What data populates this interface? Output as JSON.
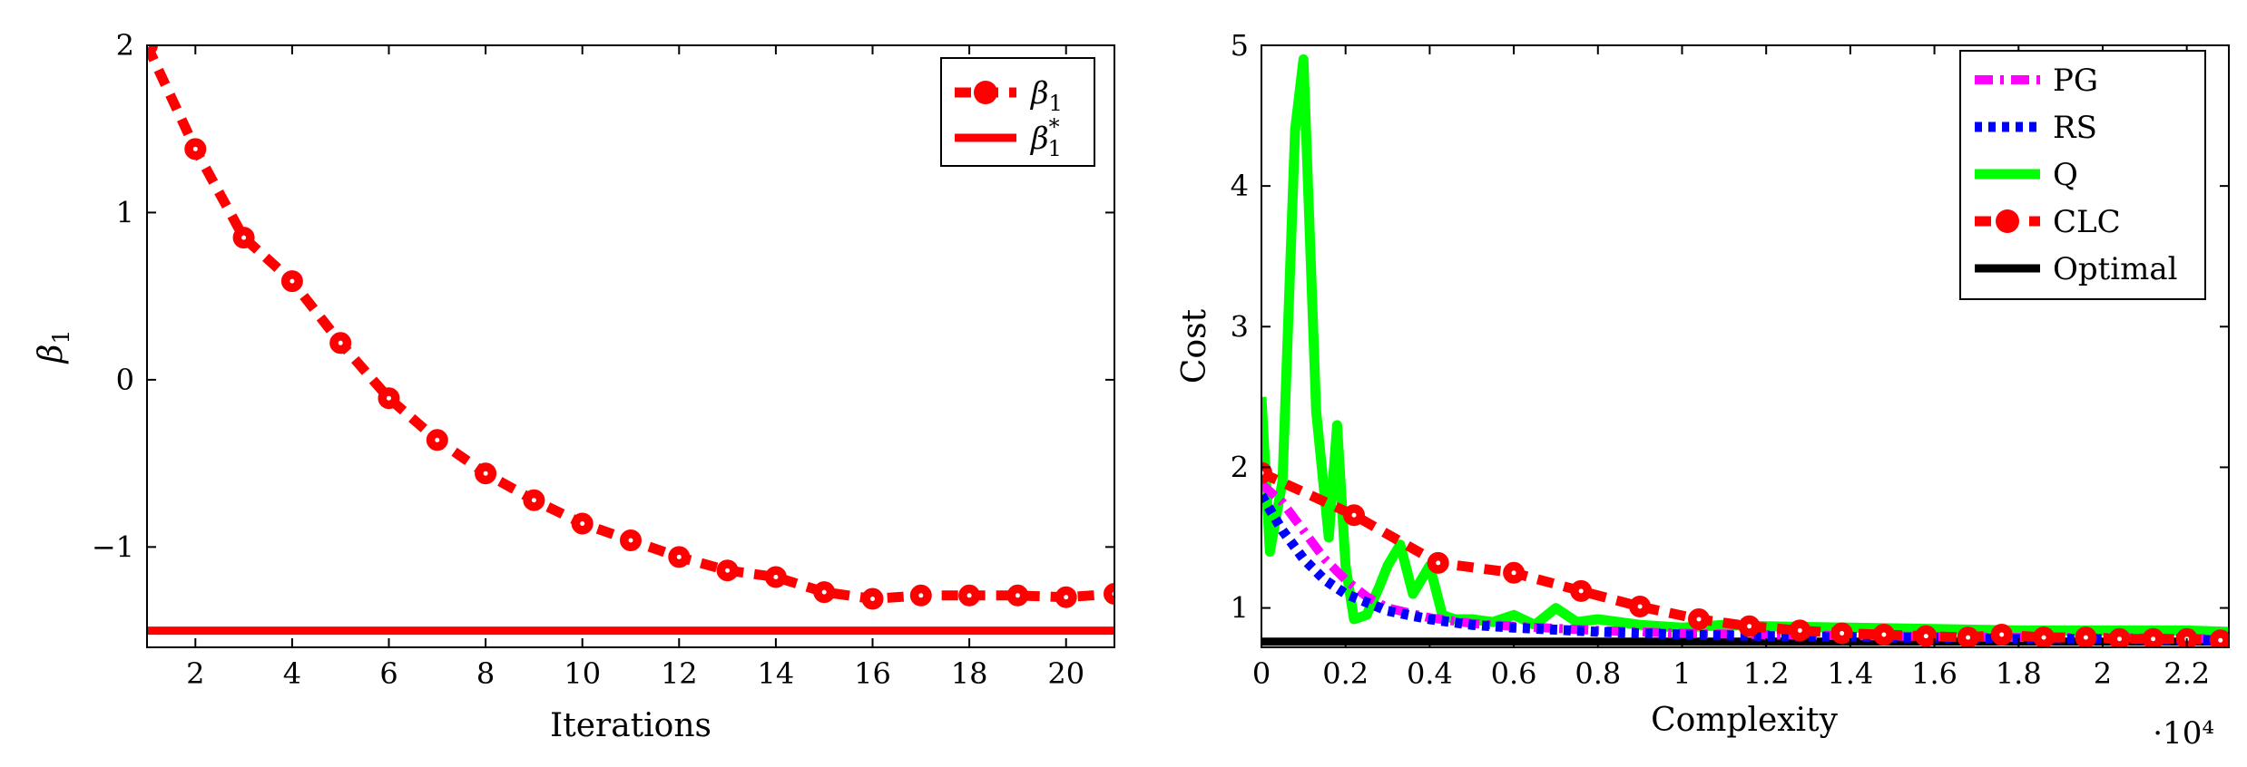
{
  "chart_data": [
    {
      "type": "line",
      "xlabel": "Iterations",
      "ylabel": "β1",
      "xlim": [
        1,
        21
      ],
      "ylim": [
        -1.6,
        2
      ],
      "xticks": [
        2,
        4,
        6,
        8,
        10,
        12,
        14,
        16,
        18,
        20
      ],
      "yticks": [
        -1,
        0,
        1,
        2
      ],
      "xtick_labels": [
        "2",
        "4",
        "6",
        "8",
        "10",
        "12",
        "14",
        "16",
        "18",
        "20"
      ],
      "ytick_labels": [
        "−1",
        "0",
        "1",
        "2"
      ],
      "grid": false,
      "legend_position": "top-right",
      "series": [
        {
          "name": "β1",
          "color": "#ff0000",
          "style": "dashed-with-circle-markers",
          "x": [
            1,
            2,
            3,
            4,
            5,
            6,
            7,
            8,
            9,
            10,
            11,
            12,
            13,
            14,
            15,
            16,
            17,
            18,
            19,
            20,
            21
          ],
          "values": [
            2.0,
            1.38,
            0.85,
            0.59,
            0.22,
            -0.11,
            -0.36,
            -0.56,
            -0.72,
            -0.86,
            -0.96,
            -1.06,
            -1.14,
            -1.18,
            -1.27,
            -1.31,
            -1.29,
            -1.29,
            -1.29,
            -1.3,
            -1.28
          ]
        },
        {
          "name": "β1*",
          "color": "#ff0000",
          "style": "solid",
          "x": [
            1,
            21
          ],
          "values": [
            -1.5,
            -1.5
          ]
        }
      ]
    },
    {
      "type": "line",
      "xlabel": "Complexity",
      "ylabel": "Cost",
      "x_scale_label": "·10⁴",
      "xlim": [
        0,
        2.3
      ],
      "ylim": [
        0.72,
        5
      ],
      "xticks": [
        0,
        0.2,
        0.4,
        0.6,
        0.8,
        1,
        1.2,
        1.4,
        1.6,
        1.8,
        2,
        2.2
      ],
      "yticks": [
        1,
        2,
        3,
        4,
        5
      ],
      "xtick_labels": [
        "0",
        "0.2",
        "0.4",
        "0.6",
        "0.8",
        "1",
        "1.2",
        "1.4",
        "1.6",
        "1.8",
        "2",
        "2.2"
      ],
      "ytick_labels": [
        "1",
        "2",
        "3",
        "4",
        "5"
      ],
      "grid": false,
      "legend_position": "top-right",
      "series": [
        {
          "name": "PG",
          "color": "#ff00ff",
          "style": "dash-dot",
          "x": [
            0,
            0.05,
            0.1,
            0.15,
            0.2,
            0.25,
            0.3,
            0.4,
            0.5,
            0.6,
            0.8,
            1.0,
            1.2,
            1.5,
            1.8,
            2.0,
            2.3
          ],
          "values": [
            1.88,
            1.75,
            1.55,
            1.35,
            1.2,
            1.08,
            1.0,
            0.93,
            0.89,
            0.87,
            0.84,
            0.82,
            0.81,
            0.8,
            0.79,
            0.79,
            0.78
          ]
        },
        {
          "name": "RS",
          "color": "#0000ff",
          "style": "dotted",
          "x": [
            0,
            0.05,
            0.1,
            0.15,
            0.2,
            0.25,
            0.3,
            0.4,
            0.5,
            0.6,
            0.8,
            1.0,
            1.2,
            1.5,
            1.8,
            2.0,
            2.3
          ],
          "values": [
            1.8,
            1.55,
            1.35,
            1.2,
            1.1,
            1.04,
            0.98,
            0.92,
            0.88,
            0.86,
            0.83,
            0.81,
            0.8,
            0.79,
            0.78,
            0.78,
            0.77
          ]
        },
        {
          "name": "Q",
          "color": "#00ff00",
          "style": "solid",
          "x": [
            0,
            0.02,
            0.05,
            0.08,
            0.1,
            0.13,
            0.16,
            0.18,
            0.2,
            0.22,
            0.25,
            0.28,
            0.3,
            0.33,
            0.36,
            0.4,
            0.43,
            0.46,
            0.5,
            0.55,
            0.6,
            0.65,
            0.7,
            0.75,
            0.8,
            0.9,
            1.0,
            1.1,
            1.2,
            1.4,
            1.6,
            1.8,
            2.0,
            2.2,
            2.3
          ],
          "values": [
            2.5,
            1.4,
            1.9,
            4.4,
            4.9,
            2.4,
            1.5,
            2.3,
            1.3,
            0.92,
            0.95,
            1.15,
            1.3,
            1.45,
            1.1,
            1.3,
            0.95,
            0.92,
            0.92,
            0.9,
            0.95,
            0.88,
            1.0,
            0.9,
            0.92,
            0.88,
            0.86,
            0.88,
            0.87,
            0.86,
            0.85,
            0.84,
            0.84,
            0.84,
            0.83
          ]
        },
        {
          "name": "CLC",
          "color": "#ff0000",
          "style": "dashed-with-circle-markers",
          "x": [
            0,
            0.22,
            0.42,
            0.6,
            0.76,
            0.9,
            1.04,
            1.16,
            1.28,
            1.38,
            1.48,
            1.58,
            1.68,
            1.76,
            1.86,
            1.96,
            2.04,
            2.12,
            2.2,
            2.28
          ],
          "values": [
            1.96,
            1.66,
            1.32,
            1.25,
            1.12,
            1.01,
            0.92,
            0.87,
            0.84,
            0.82,
            0.81,
            0.8,
            0.79,
            0.81,
            0.79,
            0.79,
            0.78,
            0.78,
            0.78,
            0.77
          ]
        },
        {
          "name": "Optimal",
          "color": "#000000",
          "style": "solid",
          "x": [
            0,
            2.3
          ],
          "values": [
            0.76,
            0.76
          ]
        }
      ]
    }
  ]
}
